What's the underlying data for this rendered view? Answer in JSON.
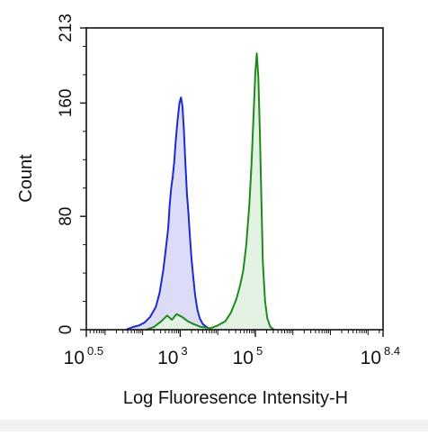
{
  "chart_data": {
    "type": "area",
    "title": "",
    "xlabel": "Log Fluoresence Intensity-H",
    "ylabel": "Count",
    "xscale": "log",
    "xlim": [
      0.5,
      8.4
    ],
    "ylim": [
      0,
      213
    ],
    "grid": false,
    "legend": "none",
    "y_ticks": [
      "0",
      "80",
      "160",
      "213"
    ],
    "x_ticks": [
      {
        "base": "10",
        "exp": "0.5"
      },
      {
        "base": "10",
        "exp": "3"
      },
      {
        "base": "10",
        "exp": "5"
      },
      {
        "base": "10",
        "exp": "8.4"
      }
    ],
    "x_tick_values": [
      0.5,
      3,
      5,
      8.4
    ],
    "series": [
      {
        "color": "#1a2ccf",
        "fill": "#dcdcf6",
        "x": [
          1.55,
          1.75,
          1.9,
          2.05,
          2.2,
          2.35,
          2.45,
          2.55,
          2.62,
          2.68,
          2.72,
          2.76,
          2.8,
          2.84,
          2.88,
          2.93,
          2.98,
          3.02,
          3.06,
          3.1,
          3.14,
          3.18,
          3.22,
          3.26,
          3.3,
          3.35,
          3.4,
          3.46,
          3.52,
          3.6,
          3.7,
          3.82
        ],
        "values": [
          0,
          2,
          3,
          5,
          9,
          16,
          26,
          42,
          58,
          72,
          88,
          100,
          108,
          118,
          133,
          148,
          160,
          164,
          158,
          140,
          116,
          96,
          82,
          65,
          50,
          36,
          24,
          14,
          8,
          4,
          2,
          0
        ]
      },
      {
        "color": "#1e8a1e",
        "fill": "#e4f2e4",
        "x": [
          2.1,
          2.3,
          2.5,
          2.65,
          2.78,
          2.9,
          3.05,
          3.2,
          3.35,
          3.55,
          3.8,
          4.0,
          4.2,
          4.35,
          4.5,
          4.6,
          4.68,
          4.76,
          4.84,
          4.9,
          4.95,
          5.0,
          5.04,
          5.08,
          5.12,
          5.16,
          5.2,
          5.26,
          5.32,
          5.4,
          5.5
        ],
        "values": [
          0,
          2,
          6,
          10,
          7,
          11,
          9,
          6,
          4,
          2,
          1,
          3,
          6,
          12,
          22,
          32,
          42,
          60,
          88,
          118,
          150,
          182,
          195,
          178,
          140,
          92,
          48,
          20,
          8,
          2,
          0
        ]
      }
    ]
  }
}
